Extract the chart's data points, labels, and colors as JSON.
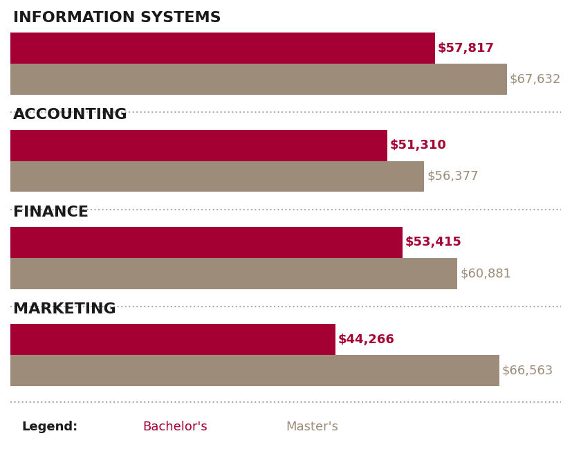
{
  "categories": [
    "INFORMATION SYSTEMS",
    "ACCOUNTING",
    "FINANCE",
    "MARKETING"
  ],
  "bachelor_values": [
    57817,
    51310,
    53415,
    44266
  ],
  "master_values": [
    67632,
    56377,
    60881,
    66563
  ],
  "bachelor_labels": [
    "$57,817",
    "$51,310",
    "$53,415",
    "$44,266"
  ],
  "master_labels": [
    "$67,632",
    "$56,377",
    "$60,881",
    "$66,563"
  ],
  "bachelor_color": "#A50034",
  "master_color": "#9E8C7A",
  "background_color": "#FFFFFF",
  "max_value": 75000,
  "bar_height": 0.32,
  "category_fontsize": 16,
  "label_fontsize": 13,
  "legend_fontsize": 13,
  "title_color": "#1a1a1a",
  "bachelor_label_color": "#A50034",
  "master_label_color": "#9E8C7A",
  "dotted_line_color": "#AAAAAA"
}
